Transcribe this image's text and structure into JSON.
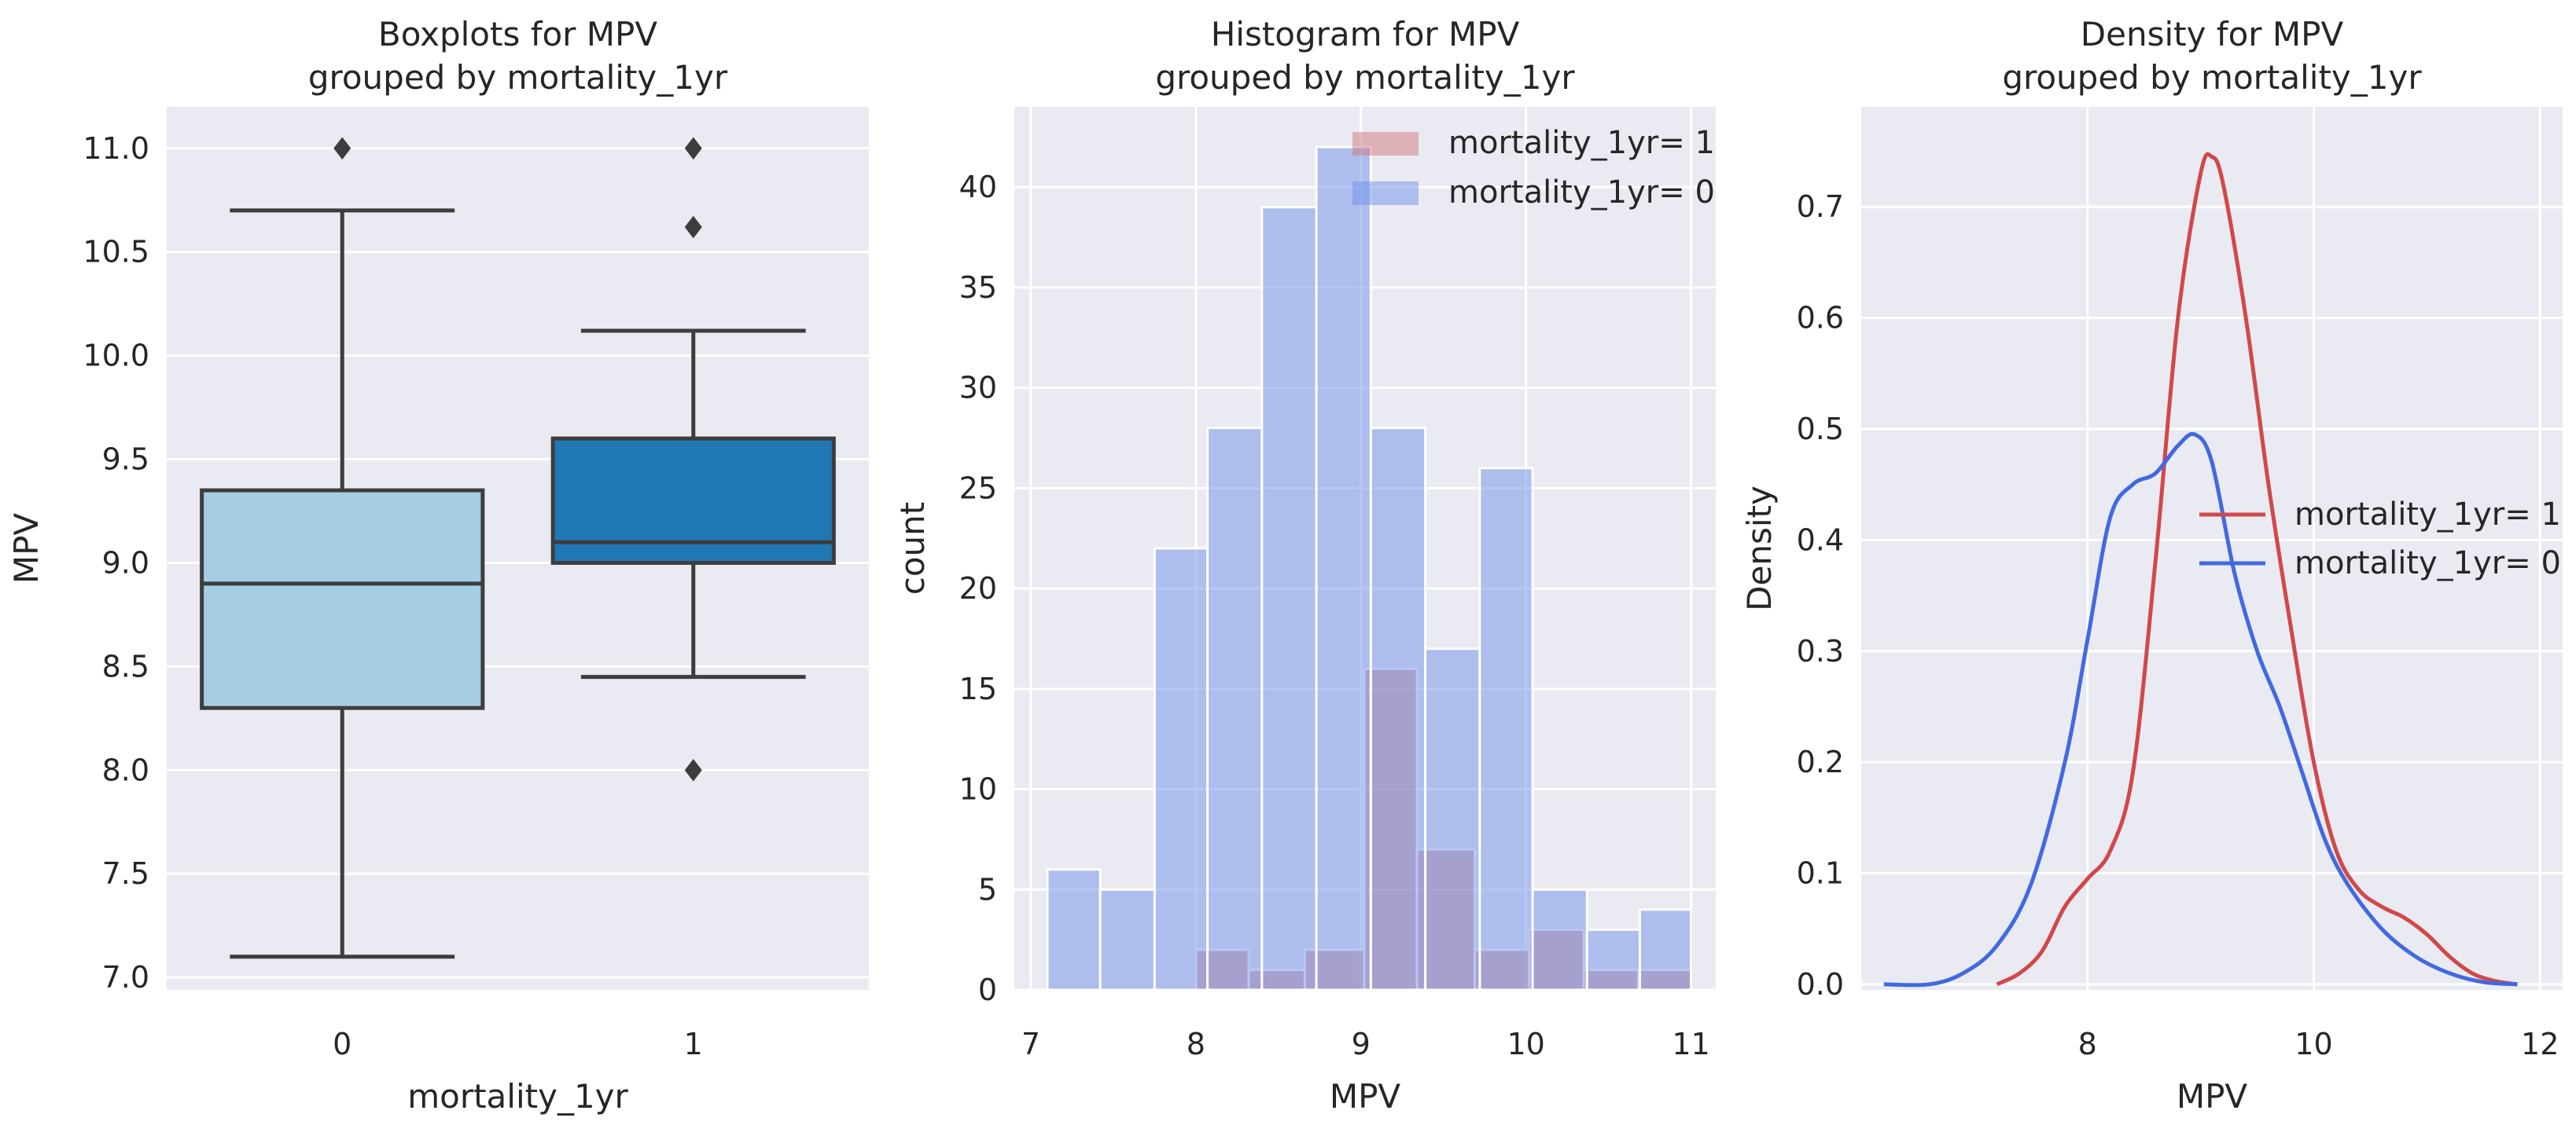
{
  "chart_data": [
    {
      "type": "box",
      "title": "Boxplots for MPV\ngrouped by mortality_1yr",
      "xlabel": "mortality_1yr",
      "ylabel": "MPV",
      "ylim": [
        6.94,
        11.2
      ],
      "yticks": [
        7.0,
        7.5,
        8.0,
        8.5,
        9.0,
        9.5,
        10.0,
        10.5,
        11.0
      ],
      "ytick_labels": [
        "7.0",
        "7.5",
        "8.0",
        "8.5",
        "9.0",
        "9.5",
        "10.0",
        "10.5",
        "11.0"
      ],
      "grid": true,
      "boxes": [
        {
          "category": "0",
          "whisker_low": 7.1,
          "q1": 8.3,
          "median": 8.9,
          "q3": 9.35,
          "whisker_high": 10.7,
          "outliers": [
            11.0
          ],
          "color": "#a6cee3"
        },
        {
          "category": "1",
          "whisker_low": 8.45,
          "q1": 9.0,
          "median": 9.1,
          "q3": 9.6,
          "whisker_high": 10.12,
          "outliers": [
            8.0,
            10.62,
            11.0
          ],
          "color": "#1f78b4"
        }
      ]
    },
    {
      "type": "bar",
      "subtype": "histogram",
      "title": "Histogram for MPV\ngrouped by mortality_1yr",
      "xlabel": "MPV",
      "ylabel": "count",
      "xlim": [
        6.9,
        11.15
      ],
      "ylim": [
        0,
        44
      ],
      "xticks": [
        7,
        8,
        9,
        10,
        11
      ],
      "yticks": [
        0,
        5,
        10,
        15,
        20,
        25,
        30,
        35,
        40
      ],
      "grid": true,
      "legend_position": "upper-right",
      "series": [
        {
          "name": "mortality_1yr= 1",
          "color": "#d0787c",
          "bin_edges": [
            8.0,
            8.32,
            8.66,
            9.02,
            9.34,
            9.69,
            10.02,
            10.35,
            10.68,
            11.0
          ],
          "counts": [
            2,
            1,
            2,
            16,
            7,
            2,
            3,
            1,
            1
          ]
        },
        {
          "name": "mortality_1yr= 0",
          "color": "#6f8fe8",
          "bin_edges": [
            7.1,
            7.42,
            7.75,
            8.07,
            8.4,
            8.73,
            9.06,
            9.39,
            9.72,
            10.04,
            10.37,
            10.69,
            11.0
          ],
          "counts": [
            6,
            5,
            22,
            28,
            39,
            42,
            28,
            17,
            26,
            5,
            3,
            4
          ]
        }
      ]
    },
    {
      "type": "line",
      "subtype": "density",
      "title": "Density for MPV\ngrouped by mortality_1yr",
      "xlabel": "MPV",
      "ylabel": "Density",
      "xlim": [
        6.0,
        12.2
      ],
      "ylim": [
        -0.005,
        0.79
      ],
      "xticks": [
        8,
        10,
        12
      ],
      "yticks": [
        0.0,
        0.1,
        0.2,
        0.3,
        0.4,
        0.5,
        0.6,
        0.7
      ],
      "ytick_labels": [
        "0.0",
        "0.1",
        "0.2",
        "0.3",
        "0.4",
        "0.5",
        "0.6",
        "0.7"
      ],
      "grid": true,
      "legend_position": "center-right",
      "series": [
        {
          "name": "mortality_1yr= 1",
          "color": "#d1484a",
          "x": [
            7.2,
            7.4,
            7.6,
            7.8,
            8.0,
            8.2,
            8.4,
            8.6,
            8.8,
            9.0,
            9.1,
            9.2,
            9.4,
            9.6,
            9.8,
            10.0,
            10.2,
            10.4,
            10.6,
            10.8,
            11.0,
            11.2,
            11.4,
            11.6,
            11.8
          ],
          "y": [
            0.0,
            0.01,
            0.03,
            0.07,
            0.095,
            0.12,
            0.19,
            0.38,
            0.6,
            0.73,
            0.745,
            0.72,
            0.6,
            0.45,
            0.32,
            0.2,
            0.12,
            0.085,
            0.07,
            0.06,
            0.045,
            0.025,
            0.01,
            0.003,
            0.0
          ]
        },
        {
          "name": "mortality_1yr= 0",
          "color": "#4169e1",
          "x": [
            6.2,
            6.6,
            6.9,
            7.2,
            7.5,
            7.8,
            8.0,
            8.2,
            8.4,
            8.6,
            8.8,
            8.95,
            9.1,
            9.3,
            9.5,
            9.7,
            9.9,
            10.1,
            10.3,
            10.6,
            10.9,
            11.2,
            11.5,
            11.8
          ],
          "y": [
            0.0,
            0.0,
            0.01,
            0.035,
            0.09,
            0.2,
            0.31,
            0.42,
            0.45,
            0.46,
            0.485,
            0.495,
            0.47,
            0.37,
            0.3,
            0.25,
            0.19,
            0.13,
            0.09,
            0.05,
            0.025,
            0.01,
            0.002,
            0.0
          ]
        }
      ]
    }
  ]
}
